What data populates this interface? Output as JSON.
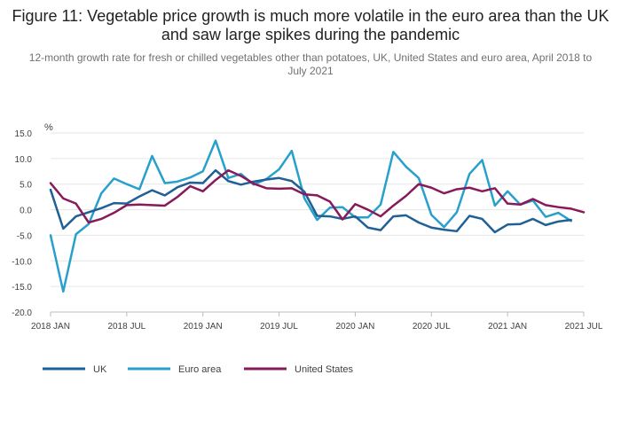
{
  "chart_data": {
    "type": "line",
    "title": "Figure 11: Vegetable price growth is much more volatile in the euro area than the UK and saw large spikes during the pandemic",
    "subtitle": "12-month growth rate for fresh or chilled vegetables other than potatoes, UK, United States and euro area, April 2018 to July 2021",
    "ylabel": "%",
    "xlabel": "",
    "ylim": [
      -20,
      15
    ],
    "yticks": [
      15,
      10,
      5,
      0,
      -5,
      -10,
      -15,
      -20
    ],
    "ytick_labels": [
      "15.0",
      "10.0",
      "5.0",
      "0.0",
      "-5.0",
      "-10.0",
      "-15.0",
      "-20.0"
    ],
    "x_range": [
      "2018-01",
      "2021-07"
    ],
    "xticks": [
      "2018-01",
      "2018-07",
      "2019-01",
      "2019-07",
      "2020-01",
      "2020-07",
      "2021-01",
      "2021-07"
    ],
    "xtick_labels": [
      "2018 JAN",
      "2018 JUL",
      "2019 JAN",
      "2019 JUL",
      "2020 JAN",
      "2020 JUL",
      "2021 JAN",
      "2021 JUL"
    ],
    "grid": true,
    "legend_position": "bottom-left",
    "x": [
      "2018-01",
      "2018-02",
      "2018-03",
      "2018-04",
      "2018-05",
      "2018-06",
      "2018-07",
      "2018-08",
      "2018-09",
      "2018-10",
      "2018-11",
      "2018-12",
      "2019-01",
      "2019-02",
      "2019-03",
      "2019-04",
      "2019-05",
      "2019-06",
      "2019-07",
      "2019-08",
      "2019-09",
      "2019-10",
      "2019-11",
      "2019-12",
      "2020-01",
      "2020-02",
      "2020-03",
      "2020-04",
      "2020-05",
      "2020-06",
      "2020-07",
      "2020-08",
      "2020-09",
      "2020-10",
      "2020-11",
      "2020-12",
      "2021-01",
      "2021-02",
      "2021-03",
      "2021-04",
      "2021-05",
      "2021-06",
      "2021-07"
    ],
    "series": [
      {
        "name": "UK",
        "color": "#206095",
        "values": [
          3.9,
          -3.7,
          -1.3,
          -0.5,
          0.3,
          1.3,
          1.2,
          2.6,
          3.8,
          2.8,
          4.4,
          5.3,
          5.2,
          7.7,
          5.6,
          4.9,
          5.5,
          5.9,
          6.2,
          5.6,
          3.5,
          -1.2,
          -1.3,
          -1.8,
          -1.3,
          -3.5,
          -4.0,
          -1.3,
          -1.1,
          -2.5,
          -3.5,
          -3.9,
          -4.2,
          -1.2,
          -1.8,
          -4.4,
          -2.9,
          -2.8,
          -1.8,
          -3.0,
          -2.3,
          -2.0,
          null
        ]
      },
      {
        "name": "Euro area",
        "color": "#27a0cc",
        "values": [
          -5.0,
          -16.0,
          -4.8,
          -2.8,
          3.2,
          6.1,
          5.0,
          4.0,
          10.5,
          5.2,
          5.5,
          6.3,
          7.5,
          13.5,
          6.2,
          7.0,
          4.9,
          6.0,
          7.9,
          11.5,
          2.2,
          -2.0,
          0.4,
          0.5,
          -1.5,
          -1.5,
          1.0,
          11.3,
          8.4,
          6.2,
          -1.0,
          -3.4,
          -0.5,
          7.0,
          9.7,
          0.8,
          3.6,
          1.0,
          1.8,
          -1.4,
          -0.6,
          -2.2,
          null
        ]
      },
      {
        "name": "United States",
        "color": "#871a5b",
        "values": [
          5.2,
          2.2,
          1.2,
          -2.5,
          -1.8,
          -0.6,
          0.9,
          1.0,
          0.9,
          0.8,
          2.5,
          4.6,
          3.6,
          5.8,
          7.7,
          6.6,
          5.1,
          4.2,
          4.1,
          4.2,
          3.0,
          2.8,
          1.6,
          -1.9,
          1.1,
          0.0,
          -1.3,
          0.8,
          2.7,
          5.0,
          4.3,
          3.2,
          4.0,
          4.3,
          3.6,
          4.2,
          1.2,
          1.0,
          2.1,
          0.9,
          0.5,
          0.2,
          -0.5
        ]
      }
    ]
  }
}
